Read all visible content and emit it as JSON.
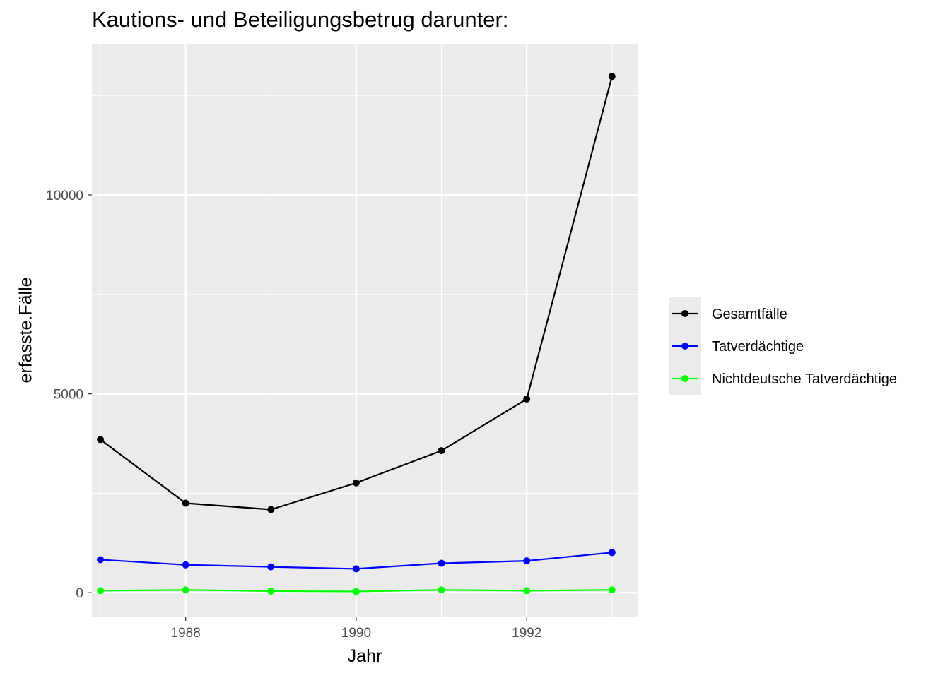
{
  "chart_data": {
    "type": "line",
    "title": "Kautions- und Beteiligungsbetrug darunter:",
    "xlabel": "Jahr",
    "ylabel": "erfasste.Fälle",
    "x": [
      1987,
      1988,
      1989,
      1990,
      1991,
      1992,
      1993
    ],
    "x_ticks": [
      1988,
      1990,
      1992
    ],
    "y_ticks": [
      0,
      5000,
      10000
    ],
    "xlim": [
      1986.9,
      1993.3
    ],
    "ylim": [
      -600,
      13800
    ],
    "grid": true,
    "legend_position": "right",
    "series": [
      {
        "name": "Gesamtfälle",
        "color": "#000000",
        "values": [
          3850,
          2250,
          2090,
          2760,
          3570,
          4870,
          12980
        ]
      },
      {
        "name": "Tatverdächtige",
        "color": "#0000ff",
        "values": [
          830,
          700,
          650,
          600,
          740,
          800,
          1010
        ]
      },
      {
        "name": "Nichtdeutsche Tatverdächtige",
        "color": "#00ff00",
        "values": [
          50,
          70,
          40,
          30,
          70,
          50,
          70
        ]
      }
    ]
  }
}
